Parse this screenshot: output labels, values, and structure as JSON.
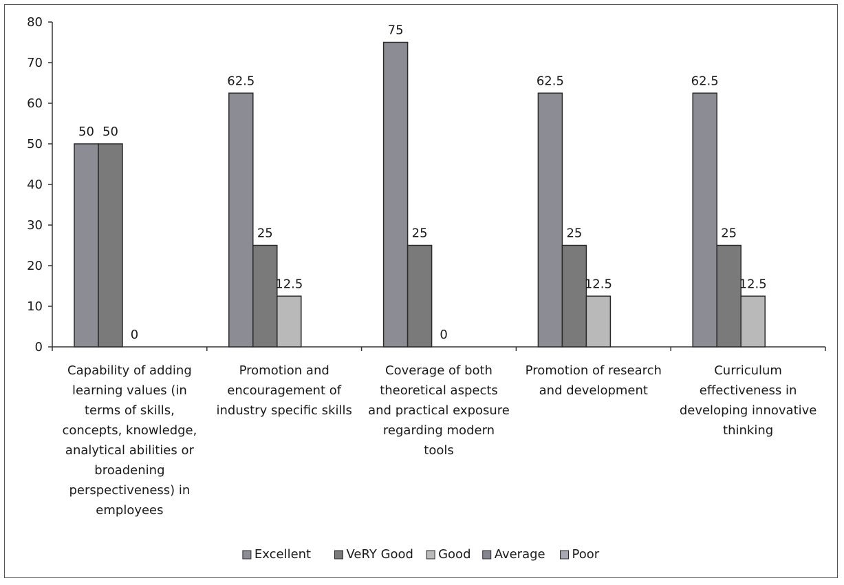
{
  "chart_data": {
    "type": "bar",
    "title": "",
    "xlabel": "",
    "ylabel": "",
    "ylim": [
      0,
      80
    ],
    "yticks": [
      0,
      10,
      20,
      30,
      40,
      50,
      60,
      70,
      80
    ],
    "grid": false,
    "legend_position": "bottom",
    "categories": [
      [
        "Capability of adding",
        "learning values (in",
        "terms of skills,",
        "concepts, knowledge,",
        "analytical abilities or",
        "broadening",
        "perspectiveness) in",
        "employees"
      ],
      [
        "Promotion and",
        "encouragement of",
        "industry specific skills"
      ],
      [
        "Coverage of both",
        "theoretical aspects",
        "and practical exposure",
        "regarding modern",
        "tools"
      ],
      [
        "Promotion of research",
        "and development"
      ],
      [
        "Curriculum",
        "effectiveness in",
        "developing innovative",
        "thinking"
      ]
    ],
    "series": [
      {
        "name": "Excellent",
        "color": "#8c8c95",
        "values": [
          50,
          62.5,
          75,
          62.5,
          62.5
        ]
      },
      {
        "name": "VeRY Good",
        "color": "#7a7a7a",
        "values": [
          50,
          25,
          25,
          25,
          25
        ]
      },
      {
        "name": "Good",
        "color": "#b9b9b9",
        "values": [
          0,
          12.5,
          0,
          12.5,
          12.5
        ]
      },
      {
        "name": "Average",
        "color": "#85858f",
        "values": [
          null,
          null,
          null,
          null,
          null
        ]
      },
      {
        "name": "Poor",
        "color": "#a8a8b2",
        "values": [
          null,
          null,
          null,
          null,
          null
        ]
      }
    ]
  }
}
